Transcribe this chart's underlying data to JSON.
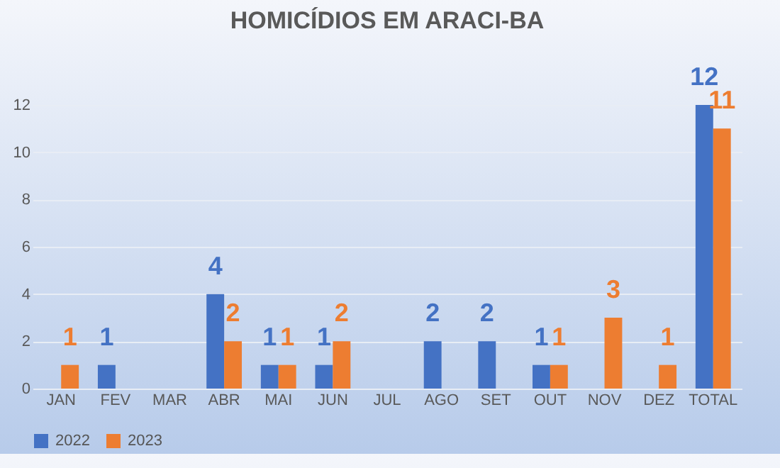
{
  "chart_data": {
    "type": "bar",
    "title": "HOMICÍDIOS EM ARACI-BA",
    "categories": [
      "JAN",
      "FEV",
      "MAR",
      "ABR",
      "MAI",
      "JUN",
      "JUL",
      "AGO",
      "SET",
      "OUT",
      "NOV",
      "DEZ",
      "TOTAL"
    ],
    "series": [
      {
        "name": "2022",
        "color": "#4472c4",
        "values": [
          0,
          1,
          0,
          4,
          1,
          1,
          0,
          2,
          2,
          1,
          0,
          0,
          12
        ],
        "value_labels": [
          null,
          "1",
          null,
          "4",
          "1",
          "1",
          null,
          "2",
          "2",
          "1",
          null,
          null,
          "12"
        ]
      },
      {
        "name": "2023",
        "color": "#ed7d31",
        "values": [
          1,
          0,
          0,
          2,
          1,
          2,
          0,
          0,
          0,
          1,
          3,
          1,
          11
        ],
        "value_labels": [
          "1",
          null,
          null,
          "2",
          "1",
          "2",
          null,
          null,
          null,
          "1",
          "3",
          "1",
          "11"
        ]
      }
    ],
    "ylim": [
      0,
      12
    ],
    "yticks": [
      0,
      2,
      4,
      6,
      8,
      10,
      12
    ],
    "grid": "y",
    "legend": "bottom"
  }
}
